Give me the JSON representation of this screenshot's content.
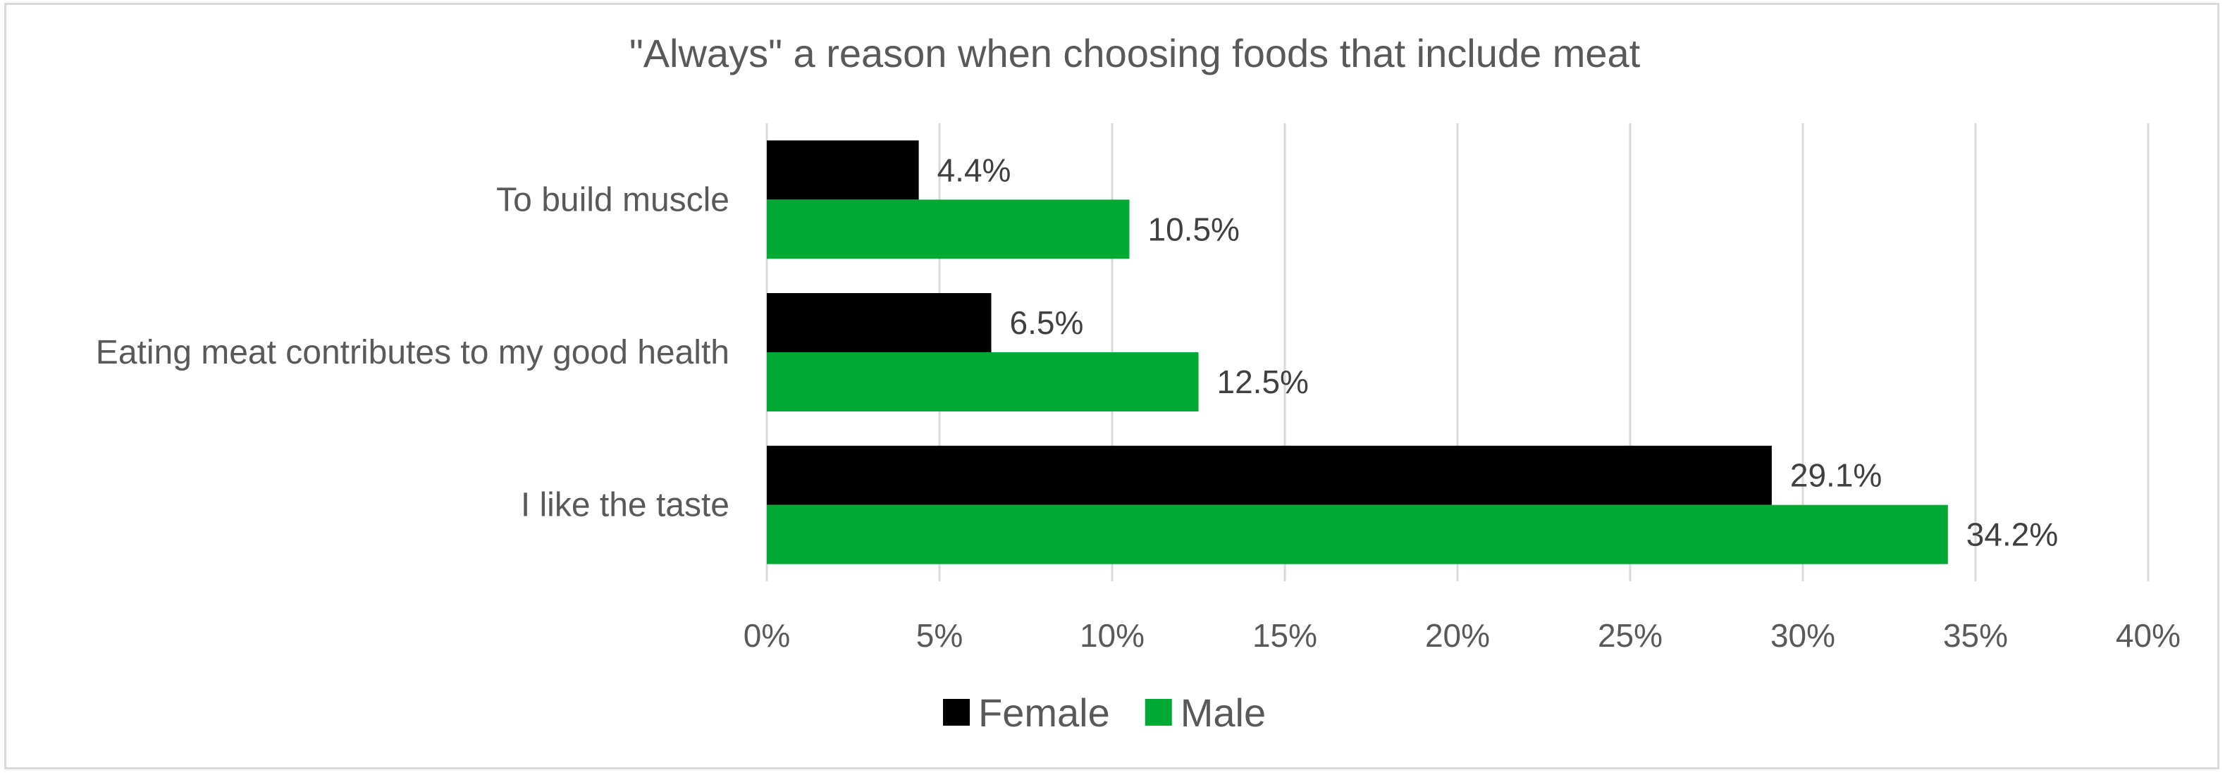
{
  "chart_data": {
    "type": "bar",
    "orientation": "horizontal",
    "title": "\"Always\" a reason when choosing foods that include meat",
    "categories": [
      "To build muscle",
      "Eating meat contributes to my good health",
      "I like the taste"
    ],
    "series": [
      {
        "name": "Female",
        "values": [
          4.4,
          6.5,
          29.1
        ],
        "labels": [
          "4.4%",
          "6.5%",
          "29.1%"
        ],
        "color": "#000000"
      },
      {
        "name": "Male",
        "values": [
          10.5,
          12.5,
          34.2
        ],
        "labels": [
          "10.5%",
          "12.5%",
          "34.2%"
        ],
        "color": "#00a933"
      }
    ],
    "xlim": [
      0,
      40
    ],
    "xticks": [
      0,
      5,
      10,
      15,
      20,
      25,
      30,
      35,
      40
    ],
    "xtick_labels": [
      "0%",
      "5%",
      "10%",
      "15%",
      "20%",
      "25%",
      "30%",
      "35%",
      "40%"
    ],
    "grid": true,
    "legend": "bottom"
  }
}
